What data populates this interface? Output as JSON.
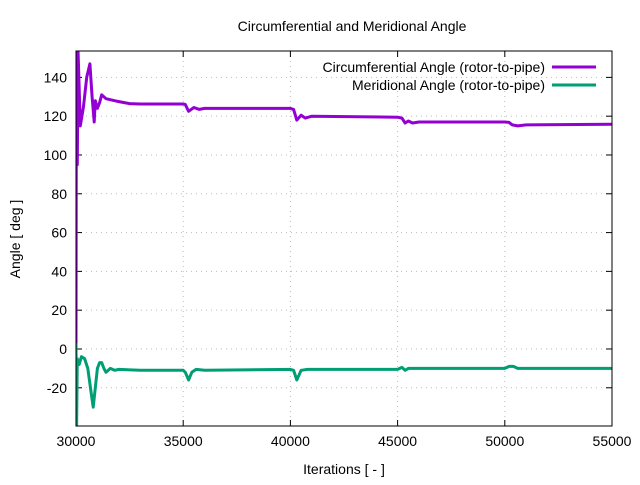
{
  "chart_data": {
    "type": "line",
    "title": "Circumferential and Meridional Angle",
    "xlabel": "Iterations [ - ]",
    "ylabel": "Angle [ deg ]",
    "xlim": [
      30000,
      55000
    ],
    "ylim": [
      -39.7,
      153.6
    ],
    "xticks": [
      30000,
      35000,
      40000,
      45000,
      50000,
      55000
    ],
    "yticks": [
      -20,
      0,
      20,
      40,
      60,
      80,
      100,
      120,
      140
    ],
    "grid": true,
    "legend_position": "top-right",
    "series": [
      {
        "name": "Circumferential Angle (rotor-to-pipe)",
        "color": "#9400d3",
        "points": [
          [
            30000,
            -5
          ],
          [
            30020,
            153
          ],
          [
            30060,
            95
          ],
          [
            30100,
            153
          ],
          [
            30200,
            115
          ],
          [
            30350,
            125
          ],
          [
            30500,
            140
          ],
          [
            30650,
            147
          ],
          [
            30750,
            130
          ],
          [
            30850,
            117
          ],
          [
            30900,
            128
          ],
          [
            31000,
            124
          ],
          [
            31100,
            127
          ],
          [
            31200,
            131
          ],
          [
            31400,
            129
          ],
          [
            31600,
            128.5
          ],
          [
            31800,
            128
          ],
          [
            32000,
            127.5
          ],
          [
            32500,
            126.5
          ],
          [
            33000,
            126.3
          ],
          [
            35000,
            126.3
          ],
          [
            35100,
            126
          ],
          [
            35250,
            122.5
          ],
          [
            35500,
            124.5
          ],
          [
            35750,
            123.5
          ],
          [
            36000,
            124
          ],
          [
            40000,
            124
          ],
          [
            40150,
            123.5
          ],
          [
            40300,
            118
          ],
          [
            40500,
            120.5
          ],
          [
            40700,
            119
          ],
          [
            41000,
            120
          ],
          [
            45000,
            119.5
          ],
          [
            45200,
            119
          ],
          [
            45350,
            116.5
          ],
          [
            45500,
            117.5
          ],
          [
            45700,
            116.5
          ],
          [
            46000,
            117
          ],
          [
            50000,
            117
          ],
          [
            50200,
            116.8
          ],
          [
            50350,
            115.5
          ],
          [
            50600,
            115
          ],
          [
            51000,
            115.5
          ],
          [
            55000,
            115.8
          ]
        ]
      },
      {
        "name": "Meridional Angle (rotor-to-pipe)",
        "color": "#009e73",
        "points": [
          [
            30000,
            3
          ],
          [
            30030,
            -40
          ],
          [
            30060,
            -5
          ],
          [
            30150,
            -8
          ],
          [
            30250,
            -4
          ],
          [
            30400,
            -5
          ],
          [
            30550,
            -10
          ],
          [
            30700,
            -22
          ],
          [
            30800,
            -30
          ],
          [
            30900,
            -20
          ],
          [
            31000,
            -10
          ],
          [
            31100,
            -7
          ],
          [
            31200,
            -7
          ],
          [
            31300,
            -10
          ],
          [
            31400,
            -12
          ],
          [
            31600,
            -10
          ],
          [
            31800,
            -11
          ],
          [
            32000,
            -10.5
          ],
          [
            33000,
            -11
          ],
          [
            35000,
            -11
          ],
          [
            35100,
            -12
          ],
          [
            35250,
            -16
          ],
          [
            35400,
            -12
          ],
          [
            35600,
            -10.5
          ],
          [
            36000,
            -11
          ],
          [
            40000,
            -10.5
          ],
          [
            40150,
            -11
          ],
          [
            40300,
            -16
          ],
          [
            40500,
            -11
          ],
          [
            40800,
            -10.5
          ],
          [
            45000,
            -10.5
          ],
          [
            45200,
            -9.5
          ],
          [
            45350,
            -11
          ],
          [
            45500,
            -10
          ],
          [
            46000,
            -10
          ],
          [
            50000,
            -10
          ],
          [
            50200,
            -9
          ],
          [
            50400,
            -9
          ],
          [
            50600,
            -10
          ],
          [
            55000,
            -10
          ]
        ]
      }
    ]
  }
}
